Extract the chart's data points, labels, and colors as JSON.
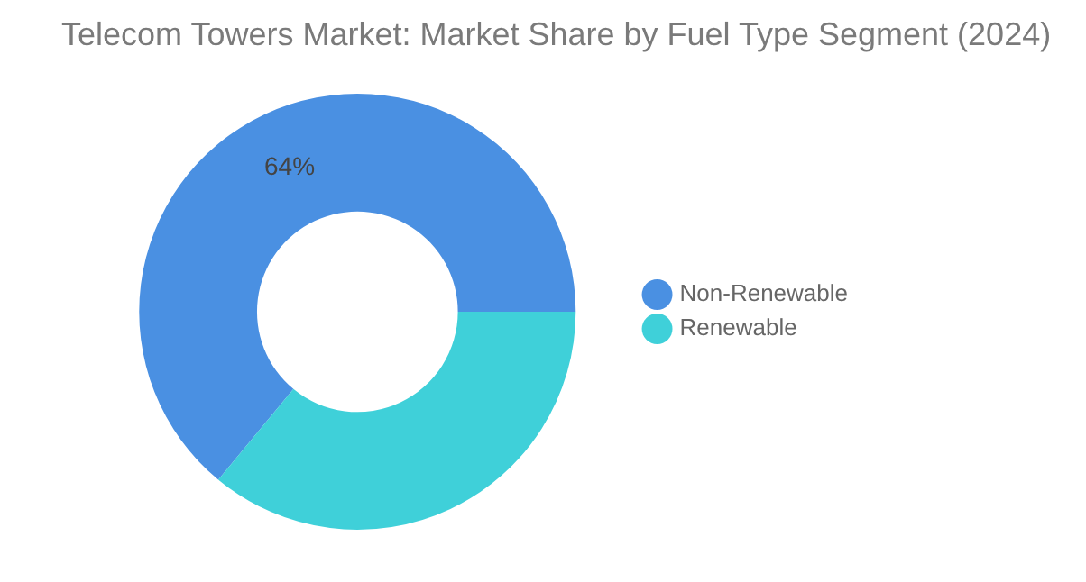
{
  "chart_data": {
    "type": "donut",
    "title": "Telecom Towers Market: Market Share by Fuel Type Segment (2024)",
    "categories": [
      "Non-Renewable",
      "Renewable"
    ],
    "values": [
      64,
      36
    ],
    "colors": [
      "#4a90e2",
      "#3fd0d9"
    ],
    "value_labels": [
      "64%",
      null
    ],
    "legend": "right"
  }
}
